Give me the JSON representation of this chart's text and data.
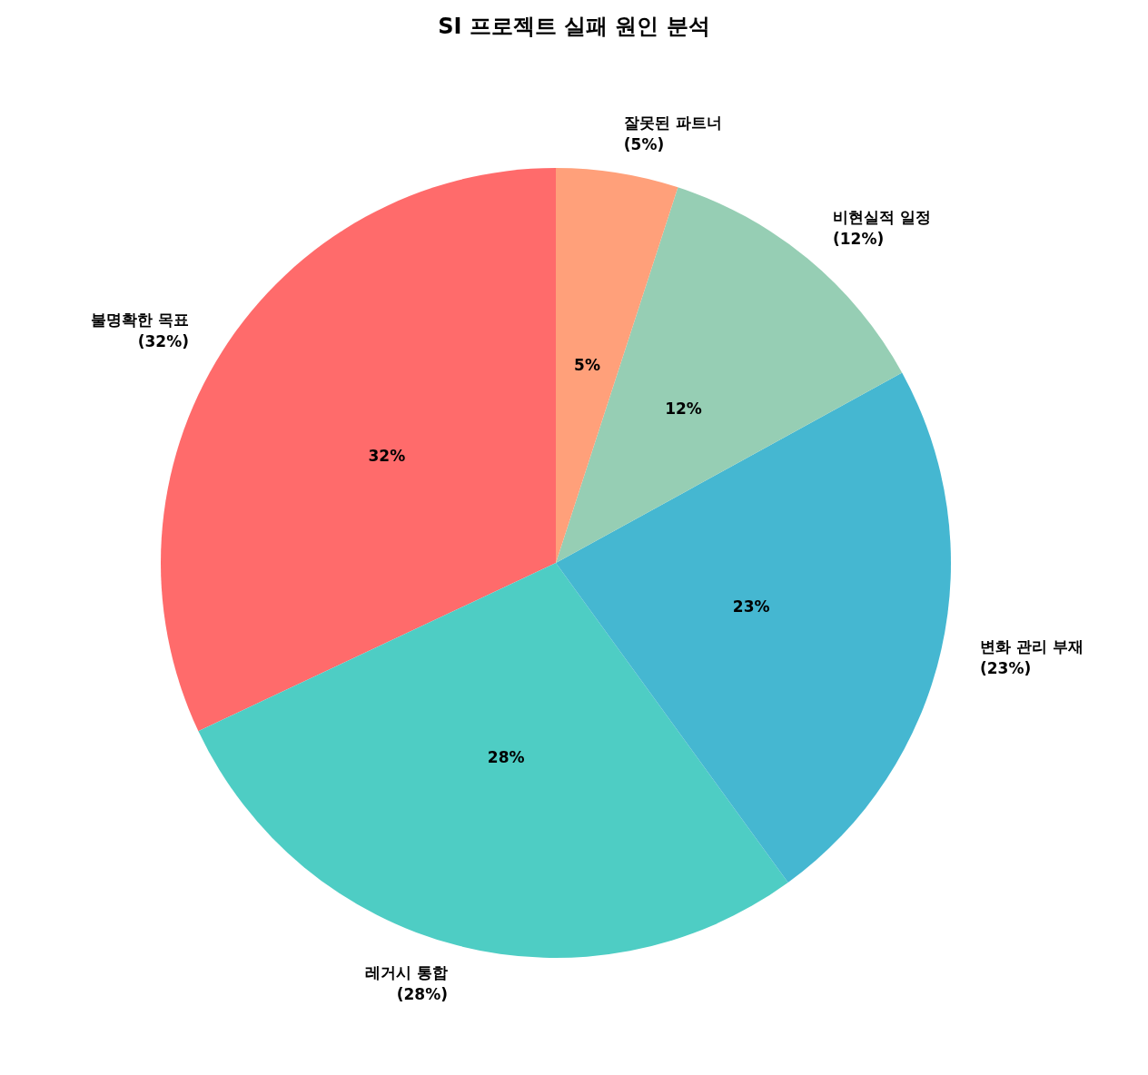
{
  "chart_data": {
    "type": "pie",
    "title": "SI 프로젝트 실패 원인 분석",
    "categories": [
      "불명확한 목표\n(32%)",
      "레거시 통합\n(28%)",
      "변화 관리 부재\n(23%)",
      "비현실적 일정\n(12%)",
      "잘못된 파트너\n(5%)"
    ],
    "values": [
      32,
      28,
      23,
      12,
      5
    ],
    "colors": [
      "#ff6b6b",
      "#4ecdc4",
      "#45b7d1",
      "#96ceb4",
      "#ffa07a"
    ],
    "value_labels": [
      "32%",
      "28%",
      "23%",
      "12%",
      "5%"
    ],
    "legend": false
  }
}
